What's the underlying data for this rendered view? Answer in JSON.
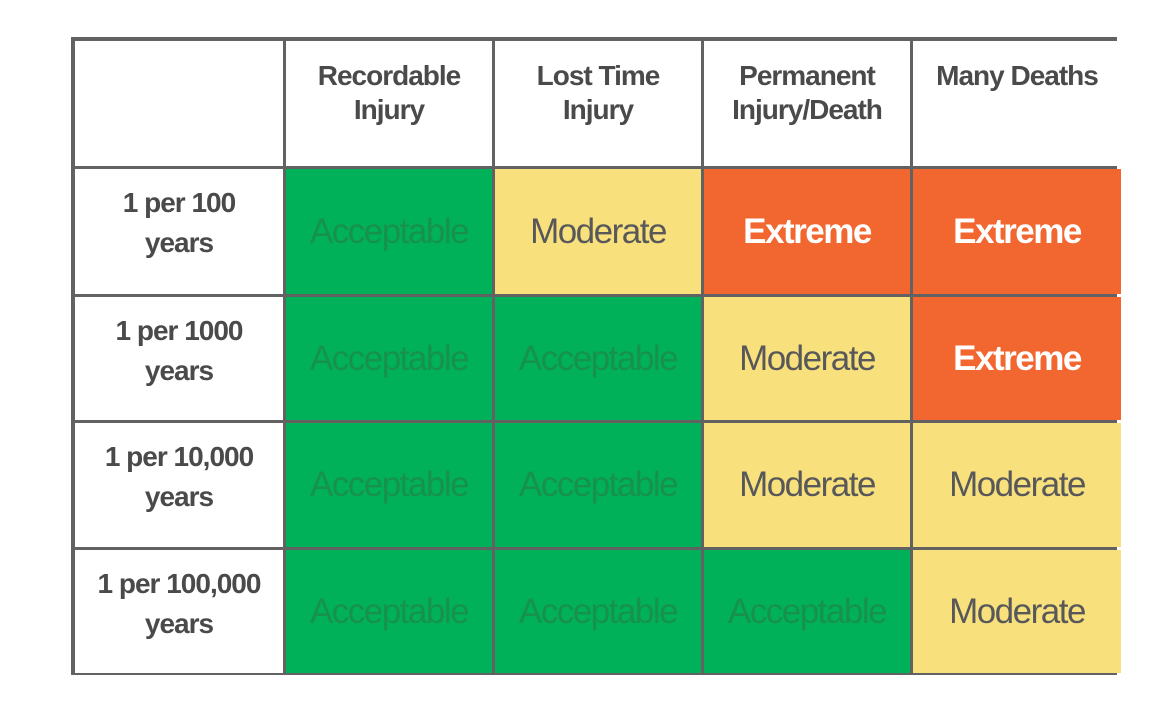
{
  "chart_data": {
    "type": "table",
    "columns": [
      "",
      "Recordable\nInjury",
      "Lost Time\nInjury",
      "Permanent\nInjury/Death",
      "Many Deaths"
    ],
    "rows": [
      {
        "label": "1 per 100\nyears",
        "cells": [
          "Acceptable",
          "Moderate",
          "Extreme",
          "Extreme"
        ]
      },
      {
        "label": "1 per 1000\nyears",
        "cells": [
          "Acceptable",
          "Acceptable",
          "Moderate",
          "Extreme"
        ]
      },
      {
        "label": "1 per 10,000\nyears",
        "cells": [
          "Acceptable",
          "Acceptable",
          "Moderate",
          "Moderate"
        ]
      },
      {
        "label": "1 per 100,000\nyears",
        "cells": [
          "Acceptable",
          "Acceptable",
          "Acceptable",
          "Moderate"
        ]
      }
    ],
    "colors": {
      "Acceptable": {
        "background": "#00b15a",
        "text": "#17924c"
      },
      "Moderate": {
        "background": "#f8e17c",
        "text": "#58585a"
      },
      "Extreme": {
        "background": "#f26630",
        "text": "#ffffff"
      },
      "border": "#626262"
    }
  }
}
